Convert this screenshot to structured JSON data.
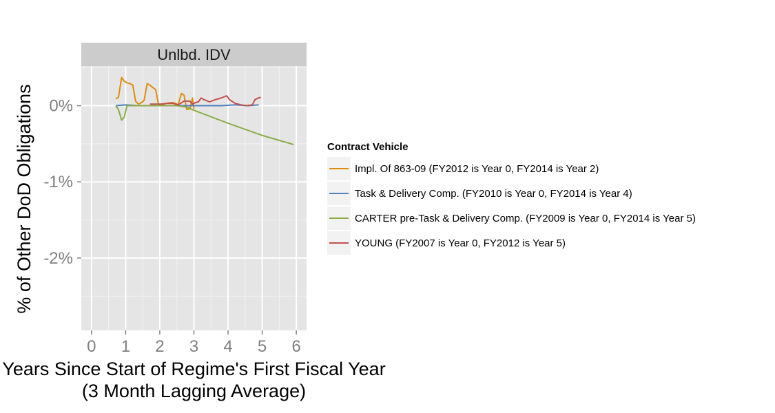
{
  "chart_data": {
    "type": "line",
    "facet": "Unlbd. IDV",
    "xlabel": "Years Since Start of Regime's First Fiscal Year",
    "xlabel_line2": "(3 Month Lagging Average)",
    "ylabel": "% of Other DoD Obligations",
    "xlim": [
      -0.3,
      6.3
    ],
    "ylim": [
      -2.95,
      0.52
    ],
    "x_ticks": [
      {
        "value": 0,
        "label": "0"
      },
      {
        "value": 1,
        "label": "1"
      },
      {
        "value": 2,
        "label": "2"
      },
      {
        "value": 3,
        "label": "3"
      },
      {
        "value": 4,
        "label": "4"
      },
      {
        "value": 5,
        "label": "5"
      },
      {
        "value": 6,
        "label": "6"
      }
    ],
    "y_ticks": [
      {
        "value": 0,
        "label": "0%"
      },
      {
        "value": -1,
        "label": "-1%"
      },
      {
        "value": -2,
        "label": "-2%"
      }
    ],
    "legend_title": "Contract Vehicle",
    "series": [
      {
        "name": "Impl. Of 863-09 (FY2012 is Year 0, FY2014 is Year 2)",
        "color": "#E08C0B",
        "points": [
          [
            0.71,
            0.09
          ],
          [
            0.79,
            0.11
          ],
          [
            0.88,
            0.37
          ],
          [
            0.96,
            0.32
          ],
          [
            1.04,
            0.3
          ],
          [
            1.13,
            0.29
          ],
          [
            1.21,
            0.27
          ],
          [
            1.29,
            0.06
          ],
          [
            1.38,
            0.02
          ],
          [
            1.46,
            0.04
          ],
          [
            1.54,
            0.07
          ],
          [
            1.63,
            0.29
          ],
          [
            1.71,
            0.27
          ],
          [
            1.79,
            0.24
          ],
          [
            1.88,
            0.21
          ],
          [
            1.96,
            0.02
          ],
          [
            2.04,
            0.0
          ],
          [
            2.13,
            0.02
          ],
          [
            2.21,
            0.03
          ],
          [
            2.29,
            0.04
          ],
          [
            2.38,
            0.04
          ],
          [
            2.46,
            0.03
          ],
          [
            2.54,
            0.01
          ],
          [
            2.63,
            0.16
          ],
          [
            2.71,
            0.14
          ],
          [
            2.79,
            -0.05
          ],
          [
            2.88,
            -0.04
          ],
          [
            2.96,
            0.1
          ],
          [
            3.0,
            -0.04
          ]
        ]
      },
      {
        "name": "Task & Delivery Comp. (FY2010 is Year 0, FY2014 is Year 4)",
        "color": "#4F81BD",
        "points": [
          [
            0.71,
            0.0
          ],
          [
            1.0,
            0.01
          ],
          [
            1.4,
            0.0
          ],
          [
            1.8,
            0.0
          ],
          [
            2.2,
            0.0
          ],
          [
            2.6,
            0.0
          ],
          [
            3.0,
            0.0
          ],
          [
            3.4,
            0.0
          ],
          [
            3.8,
            0.0
          ],
          [
            4.2,
            0.01
          ],
          [
            4.6,
            0.0
          ],
          [
            4.9,
            0.01
          ]
        ]
      },
      {
        "name": "CARTER pre-Task & Delivery Comp. (FY2009 is Year 0, FY2014 is Year 5)",
        "color": "#8AAC46",
        "points": [
          [
            0.71,
            0.0
          ],
          [
            0.79,
            -0.05
          ],
          [
            0.88,
            -0.19
          ],
          [
            0.96,
            -0.15
          ],
          [
            1.04,
            0.0
          ],
          [
            1.5,
            0.0
          ],
          [
            2.0,
            0.0
          ],
          [
            2.5,
            0.0
          ],
          [
            2.8,
            -0.02
          ],
          [
            3.0,
            -0.06
          ],
          [
            4.0,
            -0.23
          ],
          [
            5.0,
            -0.39
          ],
          [
            5.92,
            -0.51
          ]
        ]
      },
      {
        "name": "YOUNG (FY2007 is Year 0, FY2012 is Year 5)",
        "color": "#C0504D",
        "points": [
          [
            1.71,
            0.02
          ],
          [
            1.88,
            0.02
          ],
          [
            2.04,
            0.02
          ],
          [
            2.21,
            0.03
          ],
          [
            2.38,
            0.03
          ],
          [
            2.54,
            0.01
          ],
          [
            2.71,
            0.06
          ],
          [
            2.88,
            0.06
          ],
          [
            2.96,
            0.02
          ],
          [
            3.04,
            0.04
          ],
          [
            3.13,
            0.05
          ],
          [
            3.21,
            0.1
          ],
          [
            3.29,
            0.08
          ],
          [
            3.46,
            0.05
          ],
          [
            3.63,
            0.08
          ],
          [
            3.79,
            0.1
          ],
          [
            3.96,
            0.13
          ],
          [
            4.04,
            0.08
          ],
          [
            4.21,
            0.03
          ],
          [
            4.38,
            0.01
          ],
          [
            4.54,
            0.0
          ],
          [
            4.71,
            0.01
          ],
          [
            4.79,
            0.08
          ],
          [
            4.88,
            0.1
          ],
          [
            4.96,
            0.11
          ]
        ]
      }
    ]
  }
}
